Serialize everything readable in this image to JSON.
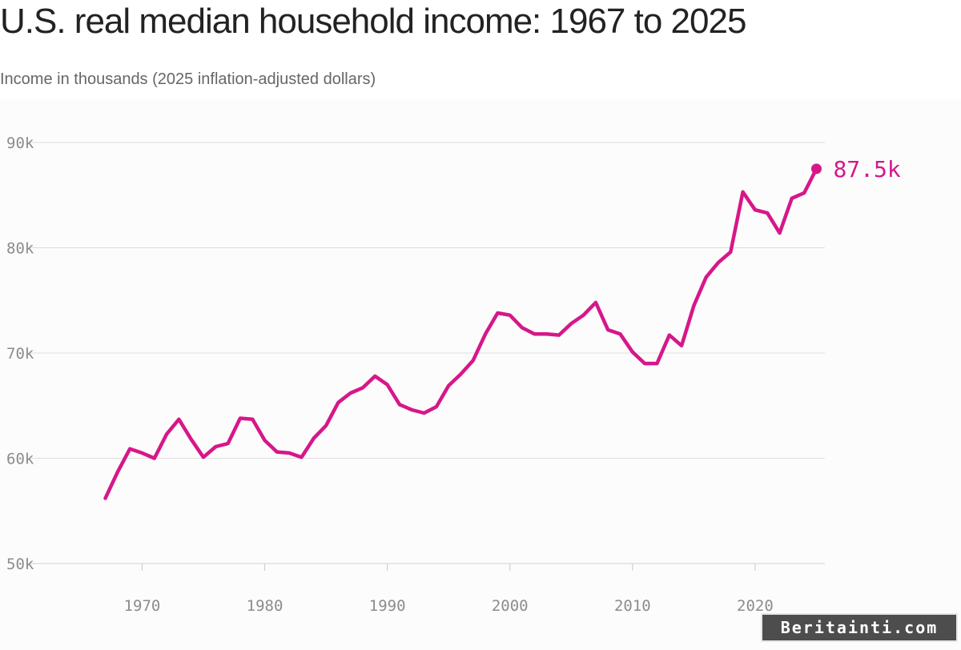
{
  "chart_data": {
    "type": "line",
    "title": "U.S. real median household income: 1967 to 2025",
    "subtitle": "Income in thousands (2025 inflation-adjusted dollars)",
    "xlabel": "",
    "ylabel": "",
    "xlim": [
      1962,
      2030
    ],
    "ylim": [
      50,
      90
    ],
    "x_ticks": [
      1970,
      1980,
      1990,
      2000,
      2010,
      2020
    ],
    "y_ticks": [
      50,
      60,
      70,
      80,
      90
    ],
    "y_tick_labels": [
      "50k",
      "60k",
      "70k",
      "80k",
      "90k"
    ],
    "grid": true,
    "line_color": "#d6178a",
    "series": [
      {
        "x": [
          1967,
          1968,
          1969,
          1970,
          1971,
          1972,
          1973,
          1974,
          1975,
          1976,
          1977,
          1978,
          1979,
          1980,
          1981,
          1982,
          1983,
          1984,
          1985,
          1986,
          1987,
          1988,
          1989,
          1990,
          1991,
          1992,
          1993,
          1994,
          1995,
          1996,
          1997,
          1998,
          1999,
          2000,
          2001,
          2002,
          2003,
          2004,
          2005,
          2006,
          2007,
          2008,
          2009,
          2010,
          2011,
          2012,
          2013,
          2014,
          2015,
          2016,
          2017,
          2018,
          2019,
          2020,
          2021,
          2022,
          2023,
          2024,
          2025
        ],
        "values": [
          56.2,
          58.7,
          60.9,
          60.5,
          60.0,
          62.3,
          63.7,
          61.8,
          60.1,
          61.1,
          61.4,
          63.8,
          63.7,
          61.7,
          60.6,
          60.5,
          60.1,
          61.9,
          63.1,
          65.3,
          66.2,
          66.7,
          67.8,
          67.0,
          65.1,
          64.6,
          64.3,
          64.9,
          66.9,
          68.0,
          69.3,
          71.8,
          73.8,
          73.6,
          72.4,
          71.8,
          71.8,
          71.7,
          72.8,
          73.6,
          74.8,
          72.2,
          71.8,
          70.1,
          69.0,
          69.0,
          71.7,
          70.7,
          74.5,
          77.2,
          78.6,
          79.6,
          85.3,
          83.6,
          83.3,
          81.4,
          84.7,
          85.2,
          87.5
        ]
      }
    ],
    "annotations": [
      {
        "x": 2025,
        "y": 87.5,
        "text": "87.5k"
      }
    ]
  },
  "watermark_text": "Beritainti.com"
}
